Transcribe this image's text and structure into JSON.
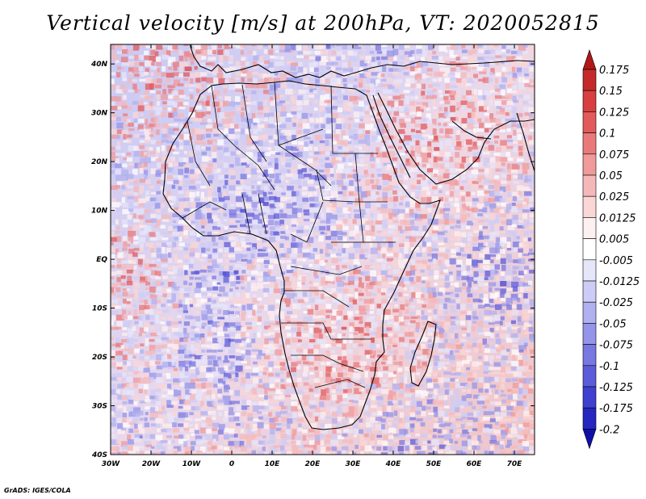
{
  "title": "Vertical velocity [m/s] at 200hPa, VT: 2020052815",
  "credit": "GrADS: IGES/COLA",
  "longitude_labels": [
    "30W",
    "20W",
    "10W",
    "0",
    "10E",
    "20E",
    "30E",
    "40E",
    "50E",
    "60E",
    "70E"
  ],
  "longitude_values": [
    -30,
    -20,
    -10,
    0,
    10,
    20,
    30,
    40,
    50,
    60,
    70
  ],
  "latitude_labels": [
    "40N",
    "30N",
    "20N",
    "10N",
    "EQ",
    "10S",
    "20S",
    "30S",
    "40S"
  ],
  "latitude_values": [
    40,
    30,
    20,
    10,
    0,
    -10,
    -20,
    -30,
    -40
  ],
  "map_extent": {
    "lon_min": -30,
    "lon_max": 75,
    "lat_min": -40,
    "lat_max": 44
  },
  "colorbar": {
    "labels": [
      "0.175",
      "0.15",
      "0.125",
      "0.1",
      "0.075",
      "0.05",
      "0.025",
      "0.0125",
      "0.005",
      "-0.005",
      "-0.0125",
      "-0.025",
      "-0.05",
      "-0.075",
      "-0.1",
      "-0.125",
      "-0.175",
      "-0.2"
    ],
    "colors": [
      "#b01818",
      "#c42a2a",
      "#d84040",
      "#e35a5a",
      "#ea7a7a",
      "#f09a9a",
      "#f5b8b8",
      "#fad6d6",
      "#fdf0f0",
      "#ffffff",
      "#e6e6fb",
      "#ccccf6",
      "#b0b0f0",
      "#9494ea",
      "#7878e2",
      "#5c5cda",
      "#4040d0",
      "#2626c0",
      "#1010a8"
    ]
  },
  "colors": {
    "frame": "#000000",
    "coast": "#000000"
  }
}
